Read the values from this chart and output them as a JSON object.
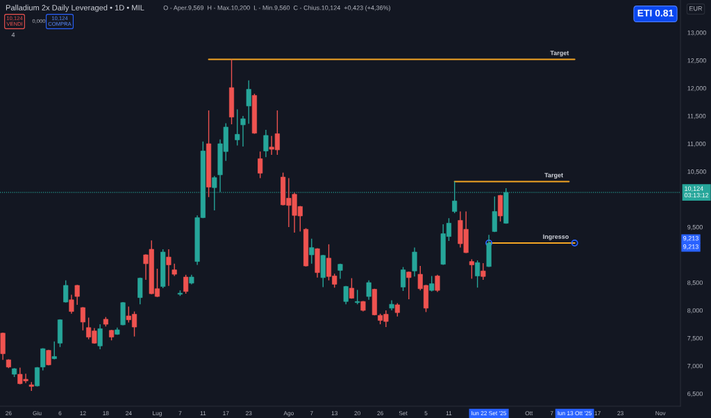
{
  "chart_data": {
    "type": "candlestick",
    "title": "Palladium 2x Daily Leveraged • 1D • MIL",
    "subtitle": "O - Aper.9,569  H - Max.10,200  L - Min.9,560  C - Chius.10,124  +0,423 (+4,36%)",
    "categories": [
      null,
      "26",
      null,
      null,
      null,
      null,
      "Giu",
      null,
      null,
      null,
      "6",
      null,
      null,
      null,
      "12",
      null,
      null,
      null,
      "18",
      null,
      null,
      null,
      "24",
      null,
      null,
      null,
      null,
      "Lug",
      null,
      null,
      null,
      "7",
      null,
      null,
      null,
      "11",
      null,
      null,
      null,
      "17",
      null,
      null,
      null,
      "23",
      null,
      null,
      null,
      null,
      null,
      null,
      "Ago",
      null,
      null,
      null,
      "7",
      null,
      null,
      null,
      "13",
      null,
      null,
      null,
      "20",
      null,
      null,
      null,
      "26",
      null,
      null,
      null,
      "Set",
      null,
      null,
      null,
      "5",
      null,
      null,
      null,
      "11",
      null,
      null,
      null,
      null,
      null,
      null,
      "lun 22 Set '25",
      null,
      null,
      null,
      null,
      null,
      null,
      "Ott",
      null,
      null,
      null,
      "7",
      null,
      null,
      null,
      "lun 13 Ott '25",
      null,
      null,
      null,
      "17",
      null,
      null,
      null,
      "23",
      null,
      null,
      null,
      null,
      null,
      null,
      "Nov",
      null,
      null,
      null
    ],
    "ohlc": [
      [
        7.59,
        7.6,
        7.11,
        7.22
      ],
      [
        7.11,
        7.12,
        6.96,
        6.98
      ],
      [
        6.85,
        6.96,
        6.8,
        6.95
      ],
      [
        6.85,
        6.97,
        6.67,
        6.68
      ],
      [
        6.76,
        6.86,
        6.69,
        6.73
      ],
      [
        6.66,
        6.71,
        6.55,
        6.63
      ],
      [
        6.64,
        6.98,
        6.63,
        6.97
      ],
      [
        6.98,
        7.32,
        6.92,
        7.31
      ],
      [
        7.28,
        7.29,
        7.01,
        7.02
      ],
      [
        7.13,
        7.44,
        7.12,
        7.17
      ],
      [
        7.41,
        7.84,
        7.34,
        7.83
      ],
      [
        8.15,
        8.54,
        8.14,
        8.45
      ],
      [
        8.19,
        8.28,
        7.94,
        7.98
      ],
      [
        8.45,
        8.46,
        8.1,
        8.25
      ],
      [
        8.05,
        8.06,
        7.64,
        7.79
      ],
      [
        7.69,
        7.87,
        7.48,
        7.52
      ],
      [
        7.63,
        7.68,
        7.4,
        7.41
      ],
      [
        7.36,
        7.75,
        7.3,
        7.67
      ],
      [
        7.84,
        7.88,
        7.71,
        7.75
      ],
      [
        7.64,
        7.65,
        7.46,
        7.52
      ],
      [
        7.57,
        7.69,
        7.56,
        7.65
      ],
      [
        7.74,
        8.15,
        7.73,
        8.14
      ],
      [
        7.9,
        8.07,
        7.78,
        7.83
      ],
      [
        7.93,
        7.98,
        7.53,
        7.7
      ],
      [
        8.23,
        8.59,
        8.11,
        8.58
      ],
      [
        9.0,
        9.01,
        8.55,
        8.84
      ],
      [
        9.1,
        9.26,
        8.29,
        8.3
      ],
      [
        8.39,
        8.75,
        8.24,
        8.25
      ],
      [
        8.43,
        9.1,
        8.4,
        9.05
      ],
      [
        8.96,
        9.1,
        8.44,
        8.82
      ],
      [
        8.73,
        8.84,
        8.62,
        8.65
      ],
      [
        8.29,
        8.36,
        8.26,
        8.31
      ],
      [
        8.6,
        8.64,
        8.3,
        8.34
      ],
      [
        8.49,
        8.64,
        8.47,
        8.6
      ],
      [
        8.88,
        9.71,
        8.82,
        9.67
      ],
      [
        9.67,
        11.04,
        9.66,
        10.87
      ],
      [
        11.0,
        11.6,
        10.04,
        10.22
      ],
      [
        10.21,
        10.42,
        9.8,
        10.39
      ],
      [
        10.44,
        11.08,
        10.13,
        11.0
      ],
      [
        10.86,
        11.37,
        10.69,
        11.3
      ],
      [
        12.01,
        12.52,
        11.35,
        11.48
      ],
      [
        11.07,
        11.62,
        10.97,
        11.17
      ],
      [
        11.34,
        11.5,
        10.95,
        11.45
      ],
      [
        11.68,
        12.14,
        11.36,
        11.98
      ],
      [
        11.87,
        11.9,
        11.18,
        11.19
      ],
      [
        10.73,
        10.86,
        10.38,
        10.47
      ],
      [
        10.87,
        11.25,
        10.76,
        11.15
      ],
      [
        10.94,
        11.14,
        10.8,
        10.9
      ],
      [
        11.18,
        11.6,
        10.8,
        10.89
      ],
      [
        10.4,
        10.48,
        9.89,
        9.9
      ],
      [
        10.02,
        10.38,
        9.5,
        9.89
      ],
      [
        10.09,
        10.12,
        9.4,
        9.71
      ],
      [
        9.87,
        9.88,
        9.42,
        9.7
      ],
      [
        9.46,
        9.48,
        8.79,
        8.8
      ],
      [
        9.0,
        9.29,
        8.84,
        9.13
      ],
      [
        9.11,
        9.12,
        8.59,
        8.68
      ],
      [
        8.59,
        9.0,
        8.42,
        8.99
      ],
      [
        8.94,
        9.19,
        8.54,
        8.61
      ],
      [
        8.62,
        8.66,
        8.41,
        8.47
      ],
      [
        8.72,
        8.84,
        8.57,
        8.83
      ],
      [
        8.16,
        8.44,
        8.11,
        8.43
      ],
      [
        8.4,
        8.58,
        8.21,
        8.22
      ],
      [
        8.14,
        8.37,
        8.11,
        8.16
      ],
      [
        8.16,
        8.17,
        7.98,
        8.0
      ],
      [
        8.25,
        8.54,
        8.19,
        8.5
      ],
      [
        8.38,
        8.39,
        7.91,
        7.92
      ],
      [
        7.91,
        7.94,
        7.75,
        7.82
      ],
      [
        7.93,
        8.0,
        7.7,
        7.8
      ],
      [
        8.04,
        8.18,
        8.0,
        8.11
      ],
      [
        8.1,
        8.13,
        7.89,
        7.96
      ],
      [
        8.42,
        8.78,
        8.35,
        8.73
      ],
      [
        8.69,
        8.7,
        8.2,
        8.59
      ],
      [
        8.71,
        9.13,
        8.61,
        9.05
      ],
      [
        8.65,
        8.8,
        8.36,
        8.39
      ],
      [
        8.45,
        8.46,
        7.97,
        8.04
      ],
      [
        8.36,
        8.62,
        8.34,
        8.48
      ],
      [
        8.62,
        8.64,
        8.33,
        8.36
      ],
      [
        8.83,
        9.55,
        8.82,
        9.38
      ],
      [
        9.33,
        9.66,
        9.25,
        9.57
      ],
      [
        9.78,
        10.32,
        9.75,
        9.97
      ],
      [
        9.62,
        9.78,
        9.13,
        9.2
      ],
      [
        9.46,
        9.78,
        9.03,
        9.04
      ],
      [
        8.88,
        8.92,
        8.57,
        8.82
      ],
      [
        8.62,
        8.9,
        8.41,
        8.86
      ],
      [
        8.71,
        8.85,
        8.55,
        8.61
      ],
      [
        8.79,
        9.36,
        8.78,
        9.21
      ],
      [
        9.42,
        10.05,
        9.41,
        9.78
      ],
      [
        10.07,
        10.08,
        9.6,
        9.7
      ],
      [
        9.569,
        10.2,
        9.56,
        10.124
      ],
      null,
      null,
      null,
      null,
      null,
      null,
      null,
      null,
      null,
      null,
      null,
      null,
      null,
      null,
      null,
      null,
      null,
      null,
      null,
      null,
      null,
      null,
      null,
      null,
      null,
      null,
      null,
      null,
      null,
      null
    ],
    "colors": [
      "#ef5350",
      "#ef5350",
      "#26a69a",
      "#ef5350",
      "#ef5350",
      "#ef5350",
      "#26a69a",
      "#26a69a",
      "#ef5350",
      "#26a69a",
      "#26a69a",
      "#26a69a",
      "#ef5350",
      "#ef5350",
      "#ef5350",
      "#ef5350",
      "#ef5350",
      "#26a69a",
      "#ef5350",
      "#ef5350",
      "#26a69a",
      "#26a69a",
      "#ef5350",
      "#ef5350",
      "#26a69a",
      "#ef5350",
      "#ef5350",
      "#ef5350",
      "#26a69a",
      "#ef5350",
      "#ef5350",
      "#26a69a",
      "#ef5350",
      "#26a69a",
      "#26a69a",
      "#26a69a",
      "#ef5350",
      "#26a69a",
      "#26a69a",
      "#26a69a",
      "#ef5350",
      "#26a69a",
      "#26a69a",
      "#26a69a",
      "#ef5350",
      "#ef5350",
      "#26a69a",
      "#ef5350",
      "#ef5350",
      "#ef5350",
      "#ef5350",
      "#ef5350",
      "#ef5350",
      "#ef5350",
      "#26a69a",
      "#ef5350",
      "#26a69a",
      "#ef5350",
      "#ef5350",
      "#26a69a",
      "#26a69a",
      "#ef5350",
      "#26a69a",
      "#ef5350",
      "#26a69a",
      "#ef5350",
      "#ef5350",
      "#ef5350",
      "#26a69a",
      "#ef5350",
      "#26a69a",
      "#ef5350",
      "#26a69a",
      "#ef5350",
      "#ef5350",
      "#26a69a",
      "#ef5350",
      "#26a69a",
      "#26a69a",
      "#26a69a",
      "#ef5350",
      "#ef5350",
      "#ef5350",
      "#26a69a",
      "#ef5350",
      "#26a69a",
      "#26a69a",
      "#ef5350",
      "#26a69a",
      null,
      null,
      null,
      null,
      null,
      null,
      null,
      null,
      null,
      null,
      null,
      null,
      null,
      null,
      null,
      null,
      null,
      null,
      null,
      null,
      null,
      null,
      null,
      null,
      null,
      null,
      null,
      null,
      null,
      null
    ],
    "series": [
      {
        "name": "Target",
        "type": "line",
        "color": "#f5a623",
        "values": [
          null,
          null,
          null,
          null,
          null,
          null,
          null,
          null,
          null,
          null,
          null,
          null,
          null,
          null,
          null,
          null,
          null,
          null,
          null,
          null,
          null,
          null,
          null,
          null,
          null,
          null,
          null,
          null,
          null,
          null,
          null,
          null,
          null,
          null,
          null,
          null,
          12.52,
          12.52,
          12.52,
          12.52,
          12.52,
          12.52,
          12.52,
          12.52,
          12.52,
          12.52,
          12.52,
          12.52,
          12.52,
          12.52,
          12.52,
          12.52,
          12.52,
          12.52,
          12.52,
          12.52,
          12.52,
          12.52,
          12.52,
          12.52,
          12.52,
          12.52,
          12.52,
          12.52,
          12.52,
          12.52,
          12.52,
          12.52,
          12.52,
          12.52,
          12.52,
          12.52,
          12.52,
          12.52,
          12.52,
          12.52,
          12.52,
          12.52,
          12.52,
          12.52,
          12.52,
          12.52,
          12.52,
          12.52,
          12.52,
          12.52,
          12.52,
          12.52,
          12.52,
          12.52,
          12.52,
          12.52,
          12.52,
          12.52,
          12.52,
          12.52,
          12.52,
          12.52,
          12.52,
          12.52,
          12.52,
          null,
          null,
          null,
          null,
          null,
          null,
          null,
          null,
          null,
          null,
          null,
          null,
          null,
          null,
          null,
          null,
          null,
          null
        ]
      },
      {
        "name": "Target",
        "type": "line",
        "color": "#f5a623",
        "values": [
          null,
          null,
          null,
          null,
          null,
          null,
          null,
          null,
          null,
          null,
          null,
          null,
          null,
          null,
          null,
          null,
          null,
          null,
          null,
          null,
          null,
          null,
          null,
          null,
          null,
          null,
          null,
          null,
          null,
          null,
          null,
          null,
          null,
          null,
          null,
          null,
          null,
          null,
          null,
          null,
          null,
          null,
          null,
          null,
          null,
          null,
          null,
          null,
          null,
          null,
          null,
          null,
          null,
          null,
          null,
          null,
          null,
          null,
          null,
          null,
          null,
          null,
          null,
          null,
          null,
          null,
          null,
          null,
          null,
          null,
          null,
          null,
          null,
          null,
          null,
          null,
          null,
          null,
          null,
          10.32,
          10.32,
          10.32,
          10.32,
          10.32,
          10.32,
          10.32,
          10.32,
          10.32,
          10.32,
          10.32,
          10.32,
          10.32,
          10.32,
          10.32,
          10.32,
          10.32,
          10.32,
          10.32,
          10.32,
          10.32,
          null,
          null,
          null,
          null,
          null,
          null,
          null,
          null,
          null,
          null,
          null,
          null,
          null,
          null,
          null,
          null,
          null,
          null,
          null
        ]
      },
      {
        "name": "Ingresso",
        "type": "line",
        "color": "#f5a623",
        "values": [
          null,
          null,
          null,
          null,
          null,
          null,
          null,
          null,
          null,
          null,
          null,
          null,
          null,
          null,
          null,
          null,
          null,
          null,
          null,
          null,
          null,
          null,
          null,
          null,
          null,
          null,
          null,
          null,
          null,
          null,
          null,
          null,
          null,
          null,
          null,
          null,
          null,
          null,
          null,
          null,
          null,
          null,
          null,
          null,
          null,
          null,
          null,
          null,
          null,
          null,
          null,
          null,
          null,
          null,
          null,
          null,
          null,
          null,
          null,
          null,
          null,
          null,
          null,
          null,
          null,
          null,
          null,
          null,
          null,
          null,
          null,
          null,
          null,
          null,
          null,
          null,
          null,
          null,
          null,
          null,
          null,
          null,
          null,
          null,
          null,
          9.213,
          9.213,
          9.213,
          9.213,
          9.213,
          9.213,
          9.213,
          9.213,
          9.213,
          9.213,
          9.213,
          9.213,
          9.213,
          9.213,
          9.213,
          9.213,
          null,
          null,
          null,
          null,
          null,
          null,
          null,
          null,
          null,
          null,
          null,
          null,
          null,
          null,
          null,
          null,
          null,
          null
        ]
      },
      {
        "type": "scatter",
        "color": "#2962ff",
        "marker": "circle",
        "values": [
          null,
          null,
          null,
          null,
          null,
          null,
          null,
          null,
          null,
          null,
          null,
          null,
          null,
          null,
          null,
          null,
          null,
          null,
          null,
          null,
          null,
          null,
          null,
          null,
          null,
          null,
          null,
          null,
          null,
          null,
          null,
          null,
          null,
          null,
          null,
          null,
          null,
          null,
          null,
          null,
          null,
          null,
          null,
          null,
          null,
          null,
          null,
          null,
          null,
          null,
          null,
          null,
          null,
          null,
          null,
          null,
          null,
          null,
          null,
          null,
          null,
          null,
          null,
          null,
          null,
          null,
          null,
          null,
          null,
          null,
          null,
          null,
          null,
          null,
          null,
          null,
          null,
          null,
          null,
          null,
          null,
          null,
          null,
          null,
          null,
          9.213,
          null,
          null,
          null,
          null,
          null,
          null,
          null,
          null,
          null,
          null,
          null,
          null,
          null,
          null,
          9.213,
          null,
          null,
          null,
          null,
          null,
          null,
          null,
          null,
          null,
          null,
          null,
          null,
          null,
          null,
          null,
          null,
          null,
          null
        ]
      }
    ],
    "ref_lines": [
      {
        "axis": "y",
        "value": 10.124,
        "label": "10,124\n03:13:12",
        "color": "#26a69a",
        "line_style": "dotted"
      }
    ],
    "ylim": [
      6.275,
      13.588
    ],
    "yticks": [
      {
        "value": 6.5,
        "label": "6,500"
      },
      {
        "value": 7,
        "label": "7,000"
      },
      {
        "value": 7.5,
        "label": "7,500"
      },
      {
        "value": 8,
        "label": "8,000"
      },
      {
        "value": 8.5,
        "label": "8,500"
      },
      {
        "value": 9.5,
        "label": "9,500"
      },
      {
        "value": 10.5,
        "label": "10,500"
      },
      {
        "value": 11,
        "label": "11,000"
      },
      {
        "value": 11.5,
        "label": "11,500"
      },
      {
        "value": 12,
        "label": "12,000"
      },
      {
        "value": 12.5,
        "label": "12,500"
      },
      {
        "value": 13,
        "label": "13,000"
      }
    ],
    "grid": false,
    "annotations": [
      "10,124\nVENDI",
      "0,000",
      "10,124\nCOMPRA",
      "4",
      "ETI 0.81",
      "EUR",
      "9,213",
      "9,213"
    ]
  }
}
